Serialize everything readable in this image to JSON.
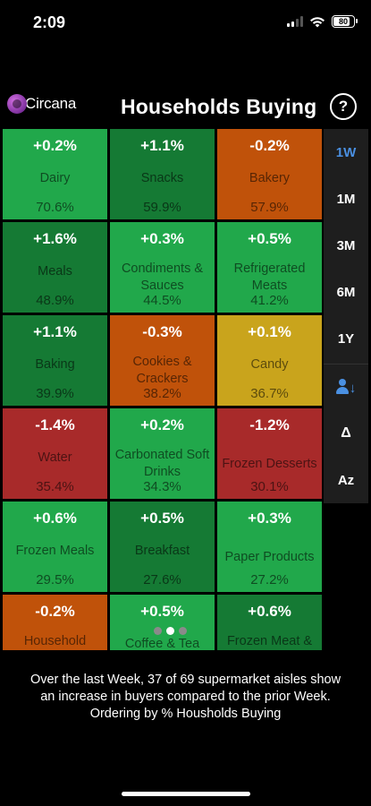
{
  "status_bar": {
    "time": "2:09",
    "battery": "80"
  },
  "header": {
    "logo_text": "Circana",
    "title": "Households Buying",
    "help_label": "?"
  },
  "colors": {
    "light_green": "#21a84b",
    "dark_green": "#157a34",
    "orange": "#c0520a",
    "yellow": "#c9a41c",
    "red": "#a82a2a",
    "accent_blue": "#4a90e2"
  },
  "tiles": [
    {
      "change": "+0.2%",
      "name": "Dairy",
      "value": "70.6%",
      "color": "#21a84b"
    },
    {
      "change": "+1.1%",
      "name": "Snacks",
      "value": "59.9%",
      "color": "#157a34"
    },
    {
      "change": "-0.2%",
      "name": "Bakery",
      "value": "57.9%",
      "color": "#c0520a"
    },
    {
      "change": "+1.6%",
      "name": "Meals",
      "value": "48.9%",
      "color": "#157a34"
    },
    {
      "change": "+0.3%",
      "name": "Condiments & Sauces",
      "value": "44.5%",
      "color": "#21a84b"
    },
    {
      "change": "+0.5%",
      "name": "Refrigerated Meats",
      "value": "41.2%",
      "color": "#21a84b"
    },
    {
      "change": "+1.1%",
      "name": "Baking",
      "value": "39.9%",
      "color": "#157a34"
    },
    {
      "change": "-0.3%",
      "name": "Cookies & Crackers",
      "value": "38.2%",
      "color": "#c0520a"
    },
    {
      "change": "+0.1%",
      "name": "Candy",
      "value": "36.7%",
      "color": "#c9a41c"
    },
    {
      "change": "-1.4%",
      "name": "Water",
      "value": "35.4%",
      "color": "#a82a2a"
    },
    {
      "change": "+0.2%",
      "name": "Carbonated Soft Drinks",
      "value": "34.3%",
      "color": "#21a84b"
    },
    {
      "change": "-1.2%",
      "name": "Frozen Desserts",
      "value": "30.1%",
      "color": "#a82a2a"
    },
    {
      "change": "+0.6%",
      "name": "Frozen Meals",
      "value": "29.5%",
      "color": "#21a84b"
    },
    {
      "change": "+0.5%",
      "name": "Breakfast",
      "value": "27.6%",
      "color": "#157a34"
    },
    {
      "change": "+0.3%",
      "name": "Paper Products",
      "value": "27.2%",
      "color": "#21a84b"
    },
    {
      "change": "-0.2%",
      "name": "Household Cleaning",
      "value": "",
      "color": "#c0520a"
    },
    {
      "change": "+0.5%",
      "name": "Coffee & Tea",
      "value": "",
      "color": "#21a84b"
    },
    {
      "change": "+0.6%",
      "name": "Frozen Meat & Poultry &",
      "value": "",
      "color": "#157a34"
    }
  ],
  "sidebar": {
    "periods": [
      "1W",
      "1M",
      "3M",
      "6M",
      "1Y"
    ],
    "active_period": "1W",
    "sort_buyers_icon": "person-down-arrow-icon",
    "sort_change_label": "Δ",
    "sort_alpha_label": "Az"
  },
  "pager": {
    "total": 3,
    "active_index": 1
  },
  "summary": {
    "line1": "Over the last Week, 37 of 69 supermarket aisles show",
    "line2": "an increase in buyers compared to the prior Week.",
    "line3": "Ordering by % Housholds Buying"
  }
}
